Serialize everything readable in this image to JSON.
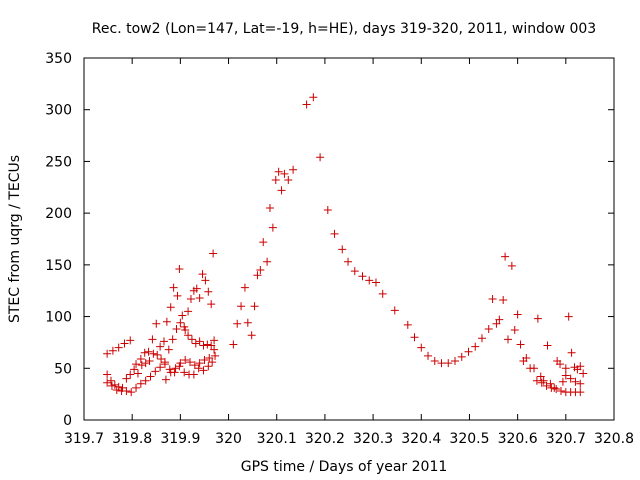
{
  "chart_data": {
    "type": "scatter",
    "title": "Rec. tow2 (Lon=147, Lat=-19, h=HE), days 319-320, 2011, window 003",
    "xlabel": "GPS time / Days of year 2011",
    "ylabel": "STEC from uqrg / TECUs",
    "xlim": [
      319.7,
      320.8
    ],
    "ylim": [
      0,
      350
    ],
    "x_ticks": [
      319.7,
      319.8,
      319.9,
      320,
      320.1,
      320.2,
      320.3,
      320.4,
      320.5,
      320.6,
      320.7,
      320.8
    ],
    "x_tick_labels": [
      "319.7",
      "319.8",
      "319.9",
      "320",
      "320.1",
      "320.2",
      "320.3",
      "320.4",
      "320.5",
      "320.6",
      "320.7",
      "320.8"
    ],
    "y_ticks": [
      0,
      50,
      100,
      150,
      200,
      250,
      300,
      350
    ],
    "y_tick_labels": [
      "0",
      "50",
      "100",
      "150",
      "200",
      "250",
      "300",
      "350"
    ],
    "grid": false,
    "marker": "+",
    "color": "#cc0000",
    "series": [
      {
        "points": [
          [
            319.748,
            64
          ],
          [
            319.76,
            67
          ],
          [
            319.772,
            70
          ],
          [
            319.784,
            74
          ],
          [
            319.796,
            77
          ],
          [
            319.808,
            54
          ],
          [
            319.818,
            59
          ],
          [
            319.826,
            65
          ],
          [
            319.834,
            66
          ],
          [
            319.842,
            78
          ],
          [
            319.85,
            93
          ],
          [
            319.858,
            71
          ],
          [
            319.866,
            76
          ],
          [
            319.872,
            95
          ],
          [
            319.88,
            109
          ],
          [
            319.886,
            128
          ],
          [
            319.894,
            120
          ],
          [
            319.898,
            146
          ],
          [
            319.904,
            101
          ],
          [
            319.91,
            87
          ],
          [
            319.916,
            105
          ],
          [
            319.922,
            117
          ],
          [
            319.928,
            125
          ],
          [
            319.934,
            127
          ],
          [
            319.94,
            118
          ],
          [
            319.946,
            141
          ],
          [
            319.952,
            135
          ],
          [
            319.958,
            124
          ],
          [
            319.964,
            112
          ],
          [
            319.968,
            161
          ],
          [
            319.748,
            44
          ],
          [
            319.756,
            38
          ],
          [
            319.764,
            34
          ],
          [
            319.772,
            32
          ],
          [
            319.78,
            31
          ],
          [
            319.788,
            40
          ],
          [
            319.796,
            44
          ],
          [
            319.804,
            49
          ],
          [
            319.812,
            45
          ],
          [
            319.82,
            53
          ],
          [
            319.828,
            55
          ],
          [
            319.836,
            57
          ],
          [
            319.844,
            64
          ],
          [
            319.852,
            63
          ],
          [
            319.86,
            59
          ],
          [
            319.868,
            54
          ],
          [
            319.876,
            68
          ],
          [
            319.884,
            78
          ],
          [
            319.892,
            88
          ],
          [
            319.9,
            94
          ],
          [
            319.908,
            90
          ],
          [
            319.916,
            82
          ],
          [
            319.924,
            78
          ],
          [
            319.932,
            74
          ],
          [
            319.94,
            76
          ],
          [
            319.948,
            72
          ],
          [
            319.956,
            73
          ],
          [
            319.964,
            72
          ],
          [
            319.97,
            77
          ],
          [
            319.748,
            36
          ],
          [
            319.758,
            33
          ],
          [
            319.768,
            29
          ],
          [
            319.778,
            28
          ],
          [
            319.788,
            28
          ],
          [
            319.798,
            27
          ],
          [
            319.808,
            31
          ],
          [
            319.818,
            35
          ],
          [
            319.828,
            38
          ],
          [
            319.838,
            42
          ],
          [
            319.848,
            47
          ],
          [
            319.858,
            51
          ],
          [
            319.868,
            56
          ],
          [
            319.878,
            49
          ],
          [
            319.888,
            46
          ],
          [
            319.898,
            52
          ],
          [
            319.908,
            46
          ],
          [
            319.918,
            44
          ],
          [
            319.928,
            44
          ],
          [
            319.938,
            50
          ],
          [
            319.948,
            48
          ],
          [
            319.958,
            52
          ],
          [
            319.966,
            56
          ],
          [
            319.972,
            62
          ],
          [
            319.87,
            39
          ],
          [
            319.88,
            46
          ],
          [
            319.89,
            50
          ],
          [
            319.9,
            55
          ],
          [
            319.91,
            58
          ],
          [
            319.92,
            56
          ],
          [
            319.93,
            53
          ],
          [
            319.94,
            55
          ],
          [
            319.95,
            58
          ],
          [
            319.96,
            60
          ],
          [
            319.97,
            68
          ],
          [
            320.01,
            73
          ],
          [
            320.018,
            93
          ],
          [
            320.026,
            110
          ],
          [
            320.034,
            128
          ],
          [
            320.04,
            94
          ],
          [
            320.048,
            82
          ],
          [
            320.054,
            110
          ],
          [
            320.06,
            140
          ],
          [
            320.066,
            145
          ],
          [
            320.072,
            172
          ],
          [
            320.08,
            153
          ],
          [
            320.086,
            205
          ],
          [
            320.092,
            186
          ],
          [
            320.098,
            232
          ],
          [
            320.104,
            240
          ],
          [
            320.11,
            222
          ],
          [
            320.116,
            238
          ],
          [
            320.124,
            232
          ],
          [
            320.134,
            242
          ],
          [
            320.162,
            305
          ],
          [
            320.176,
            312
          ],
          [
            320.19,
            254
          ],
          [
            320.206,
            203
          ],
          [
            320.22,
            180
          ],
          [
            320.236,
            165
          ],
          [
            320.248,
            153
          ],
          [
            320.262,
            144
          ],
          [
            320.278,
            139
          ],
          [
            320.292,
            135
          ],
          [
            320.306,
            133
          ],
          [
            320.32,
            122
          ],
          [
            320.345,
            106
          ],
          [
            320.372,
            92
          ],
          [
            320.386,
            80
          ],
          [
            320.4,
            70
          ],
          [
            320.414,
            62
          ],
          [
            320.428,
            57
          ],
          [
            320.442,
            55
          ],
          [
            320.456,
            55
          ],
          [
            320.47,
            57
          ],
          [
            320.484,
            61
          ],
          [
            320.498,
            66
          ],
          [
            320.512,
            71
          ],
          [
            320.526,
            79
          ],
          [
            320.54,
            88
          ],
          [
            320.548,
            117
          ],
          [
            320.556,
            93
          ],
          [
            320.562,
            97
          ],
          [
            320.57,
            116
          ],
          [
            320.574,
            158
          ],
          [
            320.58,
            78
          ],
          [
            320.588,
            149
          ],
          [
            320.594,
            87
          ],
          [
            320.6,
            102
          ],
          [
            320.606,
            73
          ],
          [
            320.612,
            57
          ],
          [
            320.618,
            60
          ],
          [
            320.626,
            50
          ],
          [
            320.634,
            50
          ],
          [
            320.642,
            98
          ],
          [
            320.648,
            42
          ],
          [
            320.654,
            38
          ],
          [
            320.662,
            72
          ],
          [
            320.668,
            35
          ],
          [
            320.676,
            31
          ],
          [
            320.682,
            57
          ],
          [
            320.688,
            54
          ],
          [
            320.694,
            37
          ],
          [
            320.7,
            50
          ],
          [
            320.706,
            100
          ],
          [
            320.712,
            65
          ],
          [
            320.718,
            51
          ],
          [
            320.724,
            49
          ],
          [
            320.73,
            52
          ],
          [
            320.736,
            45
          ],
          [
            320.64,
            38
          ],
          [
            320.65,
            36
          ],
          [
            320.66,
            33
          ],
          [
            320.67,
            31
          ],
          [
            320.68,
            30
          ],
          [
            320.69,
            28
          ],
          [
            320.7,
            27
          ],
          [
            320.71,
            27
          ],
          [
            320.72,
            27
          ],
          [
            320.73,
            27
          ],
          [
            320.7,
            43
          ],
          [
            320.71,
            40
          ],
          [
            320.72,
            37
          ],
          [
            320.73,
            35
          ]
        ]
      }
    ]
  }
}
